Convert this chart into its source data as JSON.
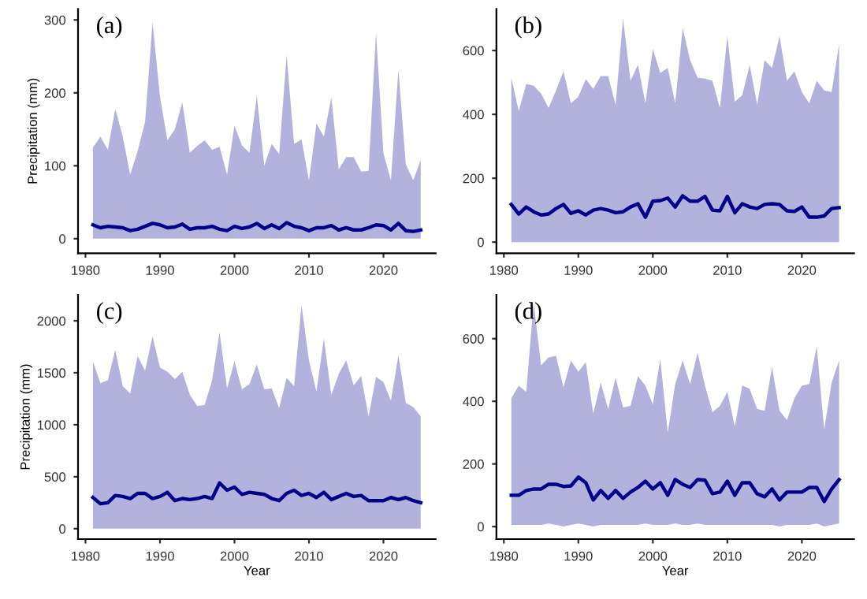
{
  "chart_data": [
    {
      "type": "line",
      "title": "(a)",
      "ylabel": "Precipitation (mm)",
      "x": [
        1981,
        1982,
        1983,
        1984,
        1985,
        1986,
        1987,
        1988,
        1989,
        1990,
        1991,
        1992,
        1993,
        1994,
        1995,
        1996,
        1997,
        1998,
        1999,
        2000,
        2001,
        2002,
        2003,
        2004,
        2005,
        2006,
        2007,
        2008,
        2009,
        2010,
        2011,
        2012,
        2013,
        2014,
        2015,
        2016,
        2017,
        2018,
        2019,
        2020,
        2021,
        2022,
        2023,
        2024,
        2025
      ],
      "xlim": [
        1979,
        2027
      ],
      "xticks": [
        1980,
        1990,
        2000,
        2010,
        2020
      ],
      "ylim": [
        -20,
        315
      ],
      "yticks": [
        0,
        100,
        200,
        300
      ],
      "grid": false,
      "legend": false,
      "series": [
        {
          "color": "#00008b",
          "values": [
            19,
            15,
            17,
            16,
            15,
            11,
            13,
            17,
            21,
            19,
            15,
            16,
            20,
            13,
            15,
            15,
            17,
            13,
            11,
            17,
            14,
            16,
            21,
            14,
            19,
            14,
            22,
            17,
            15,
            11,
            15,
            15,
            18,
            12,
            15,
            12,
            12,
            15,
            19,
            18,
            12,
            21,
            11,
            10,
            12
          ],
          "lower": [
            0,
            0,
            0,
            0,
            0,
            0,
            0,
            0,
            0,
            0,
            0,
            0,
            0,
            0,
            0,
            0,
            0,
            0,
            0,
            0,
            0,
            0,
            0,
            0,
            0,
            0,
            0,
            0,
            0,
            0,
            0,
            0,
            0,
            0,
            0,
            0,
            0,
            0,
            0,
            0,
            0,
            0,
            0,
            0,
            0
          ],
          "upper": [
            125,
            140,
            122,
            178,
            140,
            88,
            120,
            160,
            297,
            195,
            135,
            150,
            187,
            118,
            127,
            135,
            122,
            126,
            88,
            155,
            128,
            118,
            196,
            100,
            130,
            116,
            252,
            130,
            136,
            80,
            158,
            140,
            194,
            95,
            112,
            112,
            92,
            93,
            283,
            117,
            80,
            232,
            102,
            80,
            108
          ]
        }
      ]
    },
    {
      "type": "line",
      "title": "(b)",
      "x": [
        1981,
        1982,
        1983,
        1984,
        1985,
        1986,
        1987,
        1988,
        1989,
        1990,
        1991,
        1992,
        1993,
        1994,
        1995,
        1996,
        1997,
        1998,
        1999,
        2000,
        2001,
        2002,
        2003,
        2004,
        2005,
        2006,
        2007,
        2008,
        2009,
        2010,
        2011,
        2012,
        2013,
        2014,
        2015,
        2016,
        2017,
        2018,
        2019,
        2020,
        2021,
        2022,
        2023,
        2024,
        2025
      ],
      "xlim": [
        1979,
        2027
      ],
      "xticks": [
        1980,
        1990,
        2000,
        2010,
        2020
      ],
      "ylim": [
        -35,
        730
      ],
      "yticks": [
        0,
        200,
        400,
        600
      ],
      "grid": false,
      "legend": false,
      "series": [
        {
          "color": "#00008b",
          "values": [
            118,
            88,
            110,
            95,
            85,
            88,
            105,
            118,
            90,
            98,
            85,
            100,
            105,
            100,
            92,
            95,
            110,
            120,
            78,
            128,
            130,
            138,
            110,
            145,
            128,
            128,
            143,
            100,
            98,
            143,
            92,
            120,
            110,
            105,
            118,
            120,
            118,
            98,
            96,
            110,
            78,
            78,
            82,
            105,
            108
          ],
          "lower": [
            0,
            0,
            0,
            0,
            0,
            0,
            0,
            0,
            0,
            0,
            0,
            0,
            0,
            0,
            0,
            0,
            0,
            0,
            0,
            0,
            0,
            0,
            0,
            0,
            0,
            0,
            0,
            0,
            0,
            0,
            0,
            0,
            0,
            0,
            0,
            0,
            0,
            0,
            0,
            0,
            0,
            0,
            0,
            0,
            0
          ],
          "upper": [
            515,
            410,
            495,
            490,
            465,
            420,
            475,
            535,
            435,
            455,
            510,
            480,
            520,
            520,
            430,
            700,
            505,
            555,
            435,
            605,
            530,
            545,
            435,
            670,
            570,
            515,
            512,
            505,
            420,
            645,
            440,
            460,
            555,
            430,
            570,
            545,
            645,
            505,
            535,
            470,
            435,
            505,
            475,
            470,
            620
          ]
        }
      ]
    },
    {
      "type": "line",
      "title": "(c)",
      "xlabel": "Year",
      "ylabel": "Precipitation (mm)",
      "x": [
        1981,
        1982,
        1983,
        1984,
        1985,
        1986,
        1987,
        1988,
        1989,
        1990,
        1991,
        1992,
        1993,
        1994,
        1995,
        1996,
        1997,
        1998,
        1999,
        2000,
        2001,
        2002,
        2003,
        2004,
        2005,
        2006,
        2007,
        2008,
        2009,
        2010,
        2011,
        2012,
        2013,
        2014,
        2015,
        2016,
        2017,
        2018,
        2019,
        2020,
        2021,
        2022,
        2023,
        2024,
        2025
      ],
      "xlim": [
        1979,
        2027
      ],
      "xticks": [
        1980,
        1990,
        2000,
        2010,
        2020
      ],
      "ylim": [
        -100,
        2250
      ],
      "yticks": [
        0,
        500,
        1000,
        1500,
        2000
      ],
      "grid": false,
      "legend": false,
      "series": [
        {
          "color": "#00008b",
          "values": [
            300,
            240,
            250,
            320,
            310,
            290,
            340,
            340,
            290,
            310,
            350,
            270,
            290,
            280,
            290,
            310,
            290,
            440,
            370,
            400,
            330,
            350,
            340,
            330,
            290,
            270,
            340,
            370,
            320,
            340,
            300,
            350,
            280,
            310,
            340,
            310,
            320,
            270,
            270,
            270,
            300,
            280,
            300,
            270,
            250
          ],
          "lower": [
            0,
            0,
            0,
            0,
            0,
            0,
            0,
            0,
            0,
            0,
            0,
            0,
            0,
            0,
            0,
            0,
            0,
            0,
            0,
            0,
            0,
            0,
            0,
            0,
            0,
            0,
            0,
            0,
            0,
            0,
            0,
            0,
            0,
            0,
            0,
            0,
            0,
            0,
            0,
            0,
            0,
            0,
            0,
            0,
            0
          ],
          "upper": [
            1610,
            1400,
            1430,
            1720,
            1370,
            1300,
            1660,
            1520,
            1850,
            1550,
            1510,
            1440,
            1510,
            1290,
            1180,
            1190,
            1430,
            1890,
            1350,
            1610,
            1340,
            1390,
            1580,
            1340,
            1350,
            1160,
            1450,
            1370,
            2150,
            1620,
            1320,
            1830,
            1290,
            1490,
            1620,
            1380,
            1470,
            1080,
            1460,
            1410,
            1230,
            1670,
            1210,
            1170,
            1080
          ]
        }
      ]
    },
    {
      "type": "line",
      "title": "(d)",
      "xlabel": "Year",
      "x": [
        1981,
        1982,
        1983,
        1984,
        1985,
        1986,
        1987,
        1988,
        1989,
        1990,
        1991,
        1992,
        1993,
        1994,
        1995,
        1996,
        1997,
        1998,
        1999,
        2000,
        2001,
        2002,
        2003,
        2004,
        2005,
        2006,
        2007,
        2008,
        2009,
        2010,
        2011,
        2012,
        2013,
        2014,
        2015,
        2016,
        2017,
        2018,
        2019,
        2020,
        2021,
        2022,
        2023,
        2024,
        2025
      ],
      "xlim": [
        1979,
        2027
      ],
      "xticks": [
        1980,
        1990,
        2000,
        2010,
        2020
      ],
      "ylim": [
        -40,
        740
      ],
      "yticks": [
        0,
        200,
        400,
        600
      ],
      "grid": false,
      "legend": false,
      "series": [
        {
          "color": "#00008b",
          "values": [
            100,
            100,
            115,
            120,
            120,
            135,
            135,
            128,
            130,
            158,
            140,
            85,
            115,
            90,
            115,
            90,
            110,
            125,
            145,
            120,
            140,
            100,
            150,
            135,
            125,
            150,
            148,
            105,
            110,
            145,
            100,
            140,
            140,
            105,
            95,
            120,
            85,
            110,
            110,
            110,
            125,
            125,
            80,
            120,
            150
          ],
          "lower": [
            5,
            5,
            5,
            5,
            5,
            10,
            5,
            0,
            5,
            10,
            5,
            0,
            5,
            5,
            5,
            5,
            5,
            5,
            10,
            5,
            5,
            5,
            10,
            5,
            5,
            10,
            5,
            5,
            5,
            5,
            5,
            5,
            5,
            5,
            5,
            5,
            0,
            5,
            5,
            5,
            5,
            10,
            0,
            5,
            10
          ],
          "upper": [
            410,
            450,
            430,
            715,
            515,
            540,
            545,
            445,
            530,
            495,
            525,
            360,
            460,
            375,
            475,
            380,
            385,
            480,
            450,
            390,
            535,
            300,
            455,
            530,
            455,
            555,
            450,
            365,
            385,
            430,
            320,
            450,
            440,
            375,
            370,
            510,
            370,
            340,
            410,
            450,
            455,
            575,
            310,
            460,
            530
          ]
        }
      ]
    }
  ]
}
